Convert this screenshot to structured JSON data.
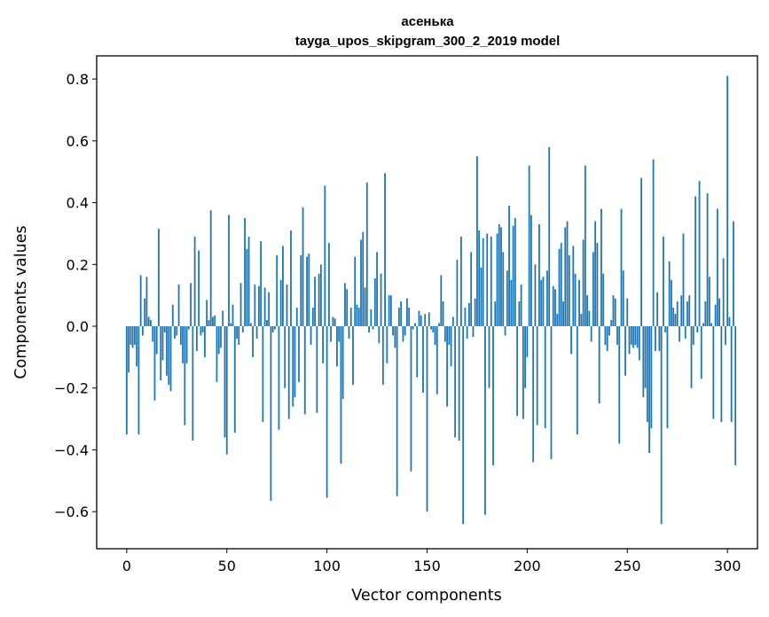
{
  "chart_data": {
    "type": "bar",
    "title": "асенька",
    "subtitle": "tayga_upos_skipgram_300_2_2019 model",
    "xlabel": "Vector components",
    "ylabel": "Components values",
    "xlim": [
      -15,
      315
    ],
    "ylim": [
      -0.72,
      0.875
    ],
    "xticks": [
      0,
      50,
      100,
      150,
      200,
      250,
      300
    ],
    "xtick_labels": [
      "0",
      "50",
      "100",
      "150",
      "200",
      "250",
      "300"
    ],
    "yticks": [
      0.8,
      0.6,
      0.4,
      0.2,
      0.0,
      -0.2,
      -0.4,
      -0.6
    ],
    "ytick_labels": [
      "0.8",
      "0.6",
      "0.4",
      "0.2",
      "0.0",
      "−0.2",
      "−0.4",
      "−0.6"
    ],
    "bar_color": "#1f77b4",
    "values": [
      -0.35,
      -0.15,
      -0.06,
      -0.07,
      -0.06,
      -0.13,
      -0.35,
      0.165,
      -0.03,
      0.09,
      0.16,
      0.03,
      0.02,
      -0.05,
      -0.24,
      -0.09,
      0.315,
      -0.175,
      -0.11,
      -0.02,
      -0.16,
      -0.19,
      -0.21,
      0.07,
      -0.04,
      -0.03,
      0.135,
      -0.06,
      -0.12,
      -0.32,
      -0.12,
      -0.01,
      0.14,
      -0.37,
      0.29,
      -0.08,
      0.245,
      -0.03,
      -0.02,
      -0.1,
      0.085,
      0.02,
      0.375,
      0.03,
      0.035,
      -0.18,
      -0.09,
      -0.07,
      0.05,
      -0.36,
      -0.415,
      0.36,
      0.01,
      0.07,
      -0.345,
      -0.04,
      -0.06,
      0.14,
      -0.02,
      0.35,
      0.25,
      0.29,
      0.01,
      -0.1,
      0.135,
      -0.04,
      0.13,
      0.275,
      -0.31,
      0.125,
      0.02,
      0.11,
      -0.565,
      -0.02,
      -0.01,
      0.23,
      -0.335,
      0.15,
      0.26,
      -0.2,
      0.135,
      -0.3,
      0.31,
      -0.26,
      -0.23,
      0.06,
      -0.18,
      0.23,
      0.385,
      -0.285,
      0.225,
      0.235,
      -0.06,
      0.06,
      0.16,
      -0.28,
      0.17,
      0.2,
      -0.12,
      0.455,
      -0.555,
      0.27,
      -0.05,
      0.03,
      0.025,
      -0.13,
      -0.05,
      -0.445,
      -0.235,
      0.14,
      0.12,
      -0.04,
      0.06,
      -0.19,
      0.225,
      0.07,
      0.06,
      0.28,
      0.305,
      0.125,
      0.465,
      -0.02,
      0.055,
      -0.01,
      0.155,
      0.24,
      -0.055,
      0.17,
      -0.19,
      0.495,
      -0.12,
      0.1,
      0.1,
      -0.03,
      -0.07,
      -0.55,
      0.06,
      0.08,
      -0.05,
      -0.03,
      0.09,
      0.06,
      -0.47,
      -0.01,
      0.01,
      -0.165,
      0.05,
      0.035,
      -0.215,
      0.04,
      -0.6,
      0.045,
      -0.01,
      -0.02,
      -0.06,
      -0.22,
      0.01,
      0.165,
      0.08,
      -0.05,
      -0.26,
      -0.06,
      -0.13,
      0.03,
      -0.36,
      0.215,
      -0.37,
      0.29,
      -0.64,
      0.06,
      -0.04,
      0.075,
      0.24,
      -0.035,
      0.09,
      0.55,
      0.31,
      0.19,
      0.285,
      -0.61,
      0.3,
      -0.2,
      0.29,
      -0.45,
      0.08,
      0.3,
      0.33,
      0.32,
      0.24,
      -0.03,
      0.18,
      0.39,
      0.15,
      0.325,
      0.35,
      -0.29,
      0.08,
      0.135,
      -0.3,
      -0.2,
      -0.1,
      0.52,
      0.36,
      -0.44,
      0.2,
      -0.32,
      0.33,
      0.15,
      0.16,
      -0.33,
      0.18,
      0.58,
      -0.43,
      0.13,
      0.12,
      0.04,
      0.25,
      0.27,
      0.08,
      0.32,
      0.34,
      0.23,
      -0.09,
      0.26,
      0.17,
      -0.35,
      0.15,
      0.04,
      0.28,
      0.52,
      0.1,
      0.05,
      -0.05,
      0.24,
      0.34,
      0.27,
      -0.25,
      0.38,
      0.17,
      -0.06,
      -0.08,
      -0.03,
      0.02,
      0.1,
      0.09,
      -0.06,
      -0.38,
      0.38,
      0.18,
      -0.16,
      0.09,
      -0.09,
      -0.06,
      -0.07,
      -0.06,
      -0.07,
      -0.11,
      0.48,
      -0.23,
      -0.2,
      -0.31,
      -0.41,
      -0.33,
      0.54,
      -0.08,
      0.11,
      -0.08,
      -0.64,
      0.29,
      -0.02,
      -0.33,
      0.21,
      0.15,
      0.06,
      0.04,
      0.08,
      -0.05,
      0.1,
      0.3,
      -0.04,
      0.08,
      0.1,
      -0.2,
      -0.06,
      0.42,
      -0.02,
      0.47,
      -0.17,
      0.01,
      0.08,
      0.43,
      0.16,
      0.01,
      -0.3,
      0.07,
      0.38,
      0.09,
      -0.31,
      0.22,
      -0.06,
      0.81,
      0.03,
      -0.31,
      0.34,
      -0.45
    ]
  }
}
